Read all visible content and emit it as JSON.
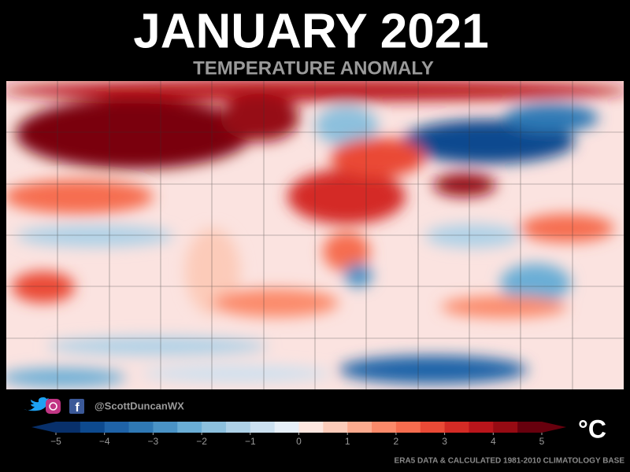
{
  "header": {
    "title": "JANUARY 2021",
    "subtitle": "TEMPERATURE ANOMALY"
  },
  "footer": {
    "handle": "@ScottDuncanWX",
    "credit": "ERA5 DATA & CALCULATED 1981-2010 CLIMATOLOGY BASE"
  },
  "colorbar": {
    "unit": "°C",
    "lim": [
      -5,
      5
    ],
    "ticks": [
      {
        "value": -5,
        "label": "−5"
      },
      {
        "value": -4,
        "label": "−4"
      },
      {
        "value": -3,
        "label": "−3"
      },
      {
        "value": -2,
        "label": "−2"
      },
      {
        "value": -1,
        "label": "−1"
      },
      0,
      1,
      2,
      3,
      4,
      5
    ],
    "under_color": "#08306b",
    "over_color": "#67000d",
    "colors": [
      "#08306b",
      "#0d4a8f",
      "#1f63a8",
      "#2f79b5",
      "#4a93c6",
      "#6aaed6",
      "#8cc0dd",
      "#aed1e7",
      "#cbe0f0",
      "#e6eff8",
      "#fde6df",
      "#fccbb9",
      "#fcab8f",
      "#fb8a6a",
      "#f66d4f",
      "#ea4a36",
      "#d42b25",
      "#b9151b",
      "#960b13",
      "#67000d"
    ]
  }
}
